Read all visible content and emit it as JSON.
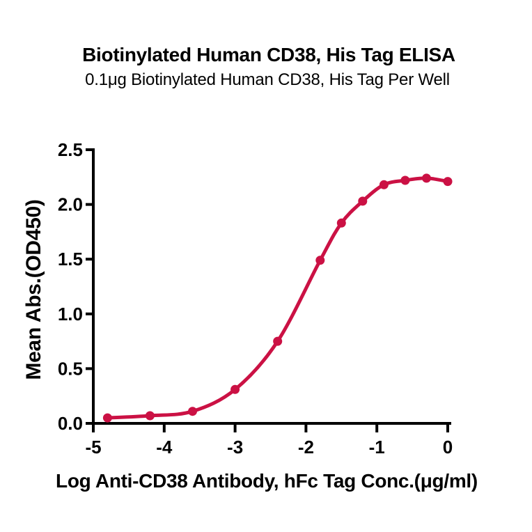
{
  "page": {
    "background": "#ffffff"
  },
  "chart_data": {
    "type": "scatter",
    "title": "Biotinylated Human CD38, His Tag ELISA",
    "subtitle": "0.1μg Biotinylated Human CD38, His Tag Per Well",
    "xlabel": "Log Anti-CD38 Antibody, hFc Tag Conc.(μg/ml)",
    "ylabel": "Mean Abs.(OD450)",
    "x": [
      -4.8,
      -4.2,
      -3.6,
      -3.0,
      -2.4,
      -1.8,
      -1.5,
      -1.2,
      -0.9,
      -0.6,
      -0.3,
      0.0
    ],
    "y": [
      0.05,
      0.07,
      0.11,
      0.31,
      0.75,
      1.49,
      1.83,
      2.03,
      2.18,
      2.22,
      2.24,
      2.21
    ],
    "fit": "sigmoidal dose-response curve through points",
    "xlim": [
      -5,
      0
    ],
    "ylim": [
      0,
      2.5
    ],
    "x_ticks": [
      -5,
      -4,
      -3,
      -2,
      -1,
      0
    ],
    "x_tick_labels": [
      "-5",
      "-4",
      "-3",
      "-2",
      "-1",
      "0"
    ],
    "y_ticks": [
      0,
      0.5,
      1.0,
      1.5,
      2.0,
      2.5
    ],
    "y_tick_labels": [
      "0.0",
      "0.5",
      "1.0",
      "1.5",
      "2.0",
      "2.5"
    ],
    "grid": false,
    "legend": false,
    "colors": {
      "curve": "#CB1144",
      "marker": "#CB1144",
      "axis": "#000000",
      "text": "#000000"
    }
  }
}
